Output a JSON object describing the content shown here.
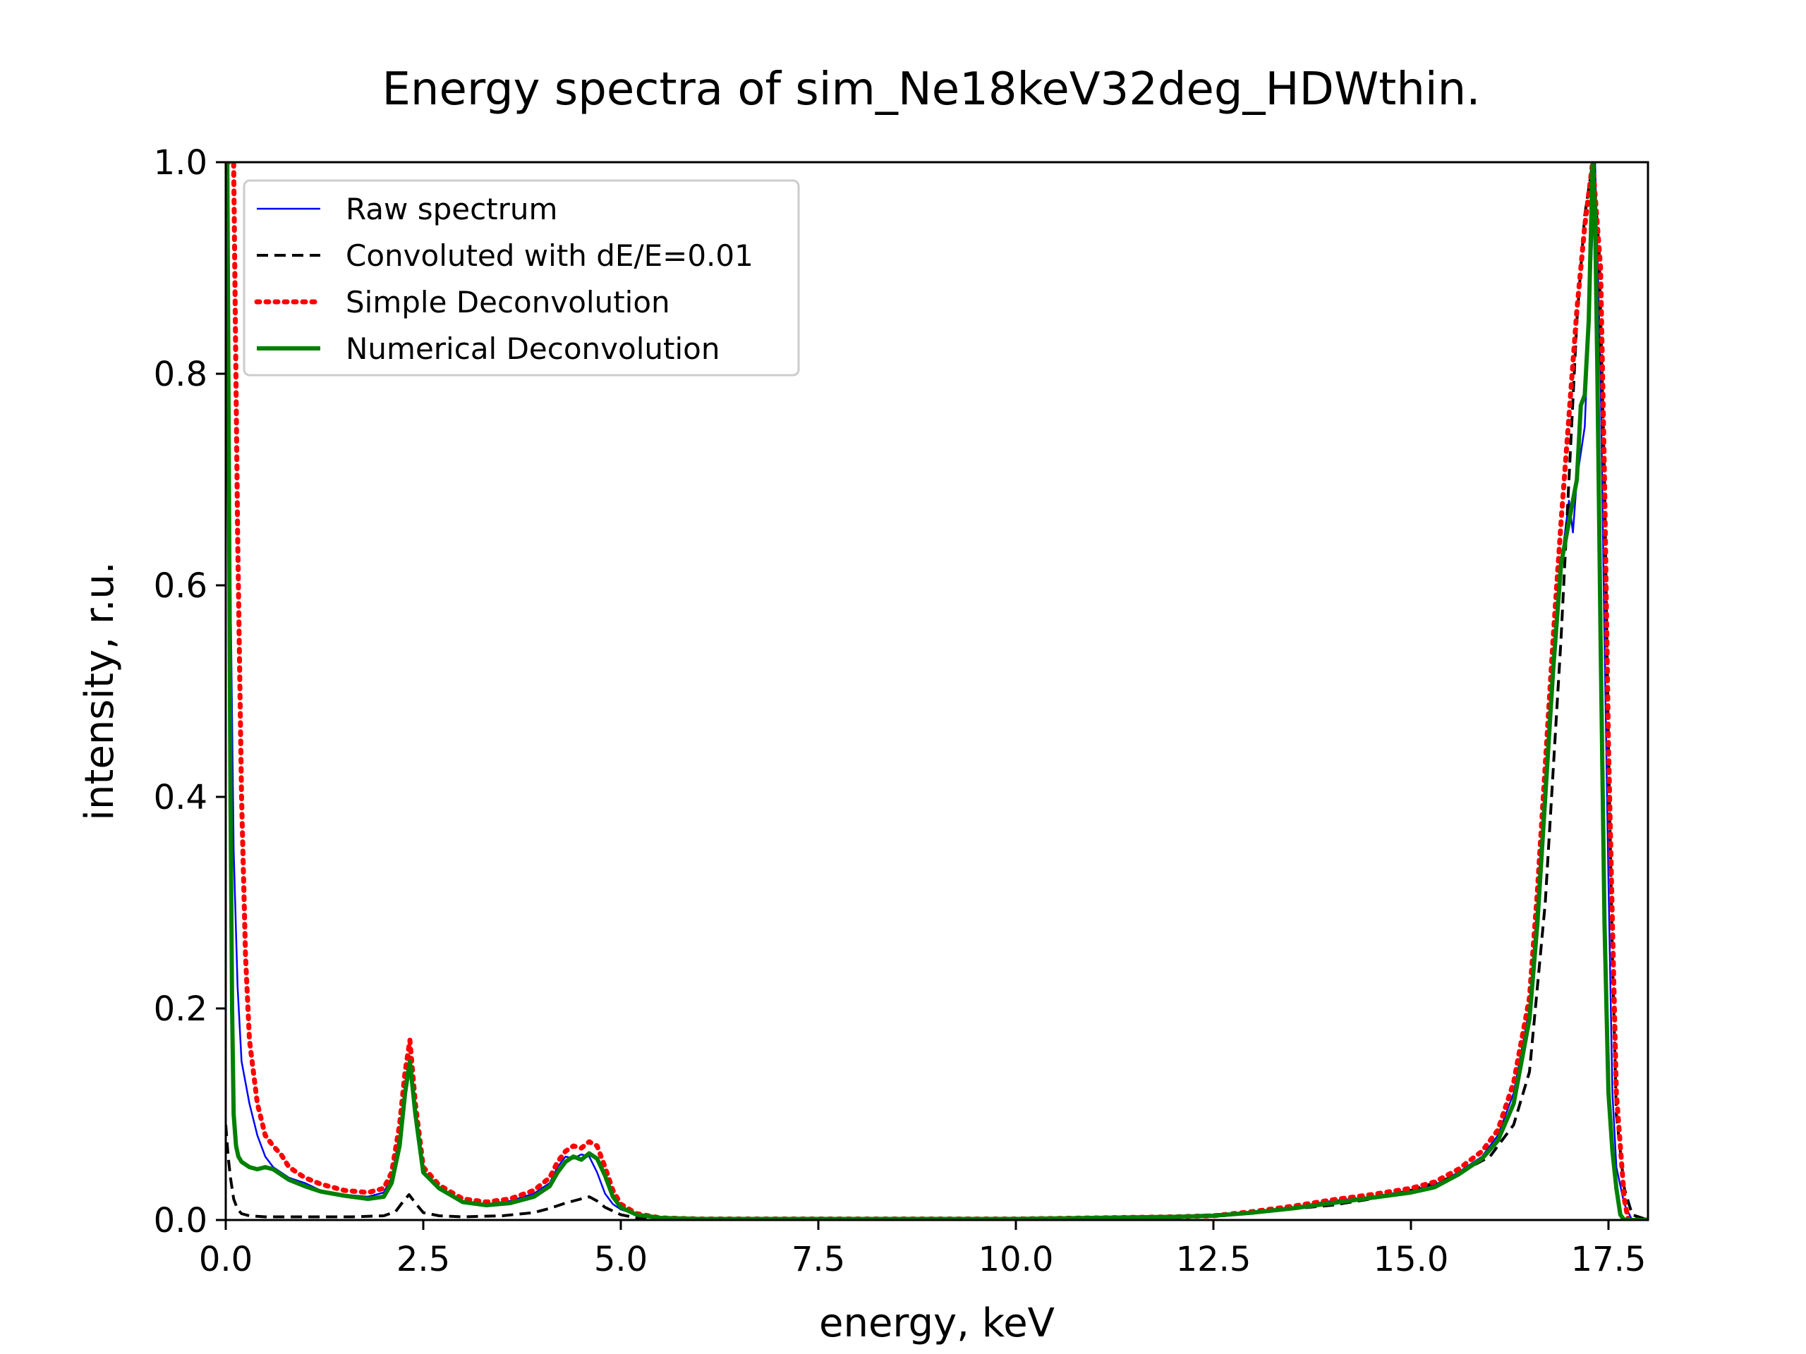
{
  "chart_data": {
    "type": "line",
    "title": "Energy spectra of sim_Ne18keV32deg_HDWthin.",
    "xlabel": "energy, keV",
    "ylabel": "intensity, r.u.",
    "xlim": [
      0,
      18
    ],
    "ylim": [
      0,
      1.0
    ],
    "xticks": [
      "0.0",
      "2.5",
      "5.0",
      "7.5",
      "10.0",
      "12.5",
      "15.0",
      "17.5"
    ],
    "yticks": [
      "0.0",
      "0.2",
      "0.4",
      "0.6",
      "0.8",
      "1.0"
    ],
    "legend_position": "top-left",
    "grid": false,
    "series": [
      {
        "name": "Raw spectrum",
        "color": "#0000ff",
        "style": "solid-thin",
        "x": [
          0.0,
          0.03,
          0.06,
          0.1,
          0.15,
          0.2,
          0.3,
          0.4,
          0.5,
          0.6,
          0.7,
          0.8,
          1.0,
          1.2,
          1.5,
          1.8,
          2.0,
          2.1,
          2.2,
          2.27,
          2.33,
          2.4,
          2.5,
          2.7,
          3.0,
          3.3,
          3.6,
          3.9,
          4.1,
          4.2,
          4.3,
          4.4,
          4.5,
          4.6,
          4.7,
          4.8,
          4.9,
          5.0,
          5.2,
          5.5,
          6.0,
          7.0,
          8.0,
          9.0,
          10.0,
          11.0,
          12.0,
          12.5,
          13.0,
          13.5,
          14.0,
          14.5,
          15.0,
          15.3,
          15.6,
          15.9,
          16.1,
          16.3,
          16.5,
          16.6,
          16.7,
          16.8,
          16.9,
          17.0,
          17.05,
          17.1,
          17.2,
          17.28,
          17.33,
          17.4,
          17.45,
          17.5,
          17.55,
          17.6,
          17.7,
          17.8,
          18.0
        ],
        "y": [
          1.0,
          1.0,
          0.6,
          0.35,
          0.22,
          0.15,
          0.11,
          0.08,
          0.06,
          0.05,
          0.045,
          0.04,
          0.035,
          0.028,
          0.024,
          0.022,
          0.026,
          0.04,
          0.08,
          0.13,
          0.155,
          0.1,
          0.045,
          0.03,
          0.018,
          0.015,
          0.018,
          0.025,
          0.035,
          0.05,
          0.06,
          0.058,
          0.062,
          0.06,
          0.045,
          0.025,
          0.015,
          0.01,
          0.005,
          0.002,
          0.001,
          0.001,
          0.001,
          0.001,
          0.001,
          0.002,
          0.003,
          0.004,
          0.008,
          0.012,
          0.018,
          0.022,
          0.028,
          0.033,
          0.045,
          0.06,
          0.08,
          0.12,
          0.2,
          0.3,
          0.42,
          0.52,
          0.62,
          0.68,
          0.65,
          0.7,
          0.75,
          0.9,
          1.0,
          0.8,
          0.55,
          0.32,
          0.12,
          0.05,
          0.015,
          0.0,
          0.0
        ]
      },
      {
        "name": "Convoluted with dE/E=0.01",
        "color": "#000000",
        "style": "dashed",
        "x": [
          0.0,
          0.03,
          0.06,
          0.1,
          0.15,
          0.2,
          0.3,
          0.5,
          0.8,
          1.2,
          1.6,
          2.0,
          2.15,
          2.25,
          2.32,
          2.4,
          2.5,
          2.7,
          3.0,
          3.5,
          3.9,
          4.1,
          4.3,
          4.5,
          4.6,
          4.7,
          4.8,
          5.0,
          5.2,
          5.5,
          6.0,
          8.0,
          10.0,
          12.0,
          13.0,
          14.0,
          14.5,
          15.0,
          15.5,
          16.0,
          16.3,
          16.5,
          16.7,
          16.9,
          17.0,
          17.1,
          17.2,
          17.3,
          17.38,
          17.45,
          17.5,
          17.55,
          17.6,
          17.7,
          17.8,
          18.0
        ],
        "y": [
          0.09,
          0.06,
          0.04,
          0.02,
          0.01,
          0.006,
          0.004,
          0.003,
          0.003,
          0.003,
          0.003,
          0.004,
          0.008,
          0.018,
          0.024,
          0.016,
          0.007,
          0.004,
          0.003,
          0.004,
          0.007,
          0.011,
          0.016,
          0.02,
          0.022,
          0.018,
          0.012,
          0.005,
          0.002,
          0.001,
          0.001,
          0.001,
          0.001,
          0.003,
          0.007,
          0.014,
          0.02,
          0.028,
          0.04,
          0.06,
          0.09,
          0.14,
          0.3,
          0.55,
          0.7,
          0.85,
          0.95,
          1.0,
          0.92,
          0.7,
          0.45,
          0.25,
          0.1,
          0.03,
          0.005,
          0.0
        ]
      },
      {
        "name": "Simple Deconvolution",
        "color": "#ff0000",
        "style": "dotted",
        "x": [
          0.0,
          0.03,
          0.06,
          0.1,
          0.15,
          0.2,
          0.25,
          0.3,
          0.4,
          0.5,
          0.6,
          0.7,
          0.8,
          1.0,
          1.2,
          1.5,
          1.8,
          2.0,
          2.1,
          2.2,
          2.27,
          2.33,
          2.4,
          2.5,
          2.7,
          3.0,
          3.3,
          3.6,
          3.9,
          4.1,
          4.2,
          4.3,
          4.4,
          4.5,
          4.6,
          4.7,
          4.8,
          4.9,
          5.0,
          5.2,
          5.5,
          6.0,
          7.0,
          8.0,
          9.0,
          10.0,
          11.0,
          12.0,
          12.5,
          13.0,
          13.5,
          14.0,
          14.5,
          15.0,
          15.3,
          15.6,
          15.9,
          16.1,
          16.3,
          16.5,
          16.6,
          16.7,
          16.8,
          16.9,
          17.0,
          17.1,
          17.2,
          17.3,
          17.4,
          17.45,
          17.5,
          17.55,
          17.6,
          17.65,
          17.7,
          17.75,
          18.0
        ],
        "y": [
          1.0,
          1.0,
          1.0,
          1.0,
          0.65,
          0.4,
          0.25,
          0.17,
          0.11,
          0.08,
          0.07,
          0.062,
          0.05,
          0.04,
          0.034,
          0.028,
          0.026,
          0.03,
          0.045,
          0.09,
          0.14,
          0.17,
          0.11,
          0.05,
          0.033,
          0.02,
          0.017,
          0.02,
          0.028,
          0.04,
          0.055,
          0.065,
          0.07,
          0.068,
          0.074,
          0.07,
          0.05,
          0.028,
          0.015,
          0.006,
          0.002,
          0.001,
          0.001,
          0.001,
          0.001,
          0.001,
          0.002,
          0.003,
          0.004,
          0.008,
          0.013,
          0.019,
          0.024,
          0.03,
          0.036,
          0.048,
          0.065,
          0.085,
          0.13,
          0.21,
          0.31,
          0.43,
          0.55,
          0.66,
          0.76,
          0.86,
          0.94,
          1.0,
          0.9,
          0.7,
          0.45,
          0.28,
          0.12,
          0.07,
          0.02,
          0.0,
          0.0
        ]
      },
      {
        "name": "Numerical Deconvolution",
        "color": "#008000",
        "style": "solid-thick",
        "x": [
          0.0,
          0.02,
          0.04,
          0.06,
          0.08,
          0.1,
          0.13,
          0.16,
          0.2,
          0.3,
          0.4,
          0.5,
          0.6,
          0.7,
          0.8,
          1.0,
          1.2,
          1.5,
          1.8,
          2.0,
          2.1,
          2.2,
          2.27,
          2.33,
          2.4,
          2.5,
          2.7,
          3.0,
          3.3,
          3.6,
          3.9,
          4.1,
          4.2,
          4.3,
          4.4,
          4.5,
          4.6,
          4.7,
          4.8,
          4.9,
          5.0,
          5.2,
          5.5,
          6.0,
          7.0,
          8.0,
          9.0,
          10.0,
          11.0,
          12.0,
          12.5,
          13.0,
          13.5,
          14.0,
          14.5,
          15.0,
          15.3,
          15.6,
          15.9,
          16.1,
          16.3,
          16.5,
          16.6,
          16.7,
          16.8,
          16.9,
          17.0,
          17.1,
          17.15,
          17.2,
          17.25,
          17.3,
          17.33,
          17.36,
          17.4,
          17.45,
          17.5,
          17.55,
          17.6,
          17.65,
          17.7,
          18.0
        ],
        "y": [
          1.0,
          1.0,
          0.7,
          0.4,
          0.2,
          0.1,
          0.07,
          0.06,
          0.055,
          0.05,
          0.048,
          0.05,
          0.048,
          0.043,
          0.038,
          0.032,
          0.027,
          0.023,
          0.02,
          0.022,
          0.035,
          0.07,
          0.12,
          0.15,
          0.1,
          0.045,
          0.03,
          0.017,
          0.014,
          0.016,
          0.022,
          0.032,
          0.045,
          0.055,
          0.06,
          0.057,
          0.063,
          0.058,
          0.042,
          0.022,
          0.012,
          0.005,
          0.002,
          0.001,
          0.001,
          0.001,
          0.001,
          0.001,
          0.002,
          0.003,
          0.004,
          0.007,
          0.011,
          0.016,
          0.021,
          0.026,
          0.031,
          0.043,
          0.058,
          0.075,
          0.11,
          0.19,
          0.28,
          0.4,
          0.52,
          0.62,
          0.66,
          0.7,
          0.77,
          0.78,
          0.85,
          1.0,
          0.95,
          0.8,
          0.55,
          0.28,
          0.12,
          0.065,
          0.03,
          0.005,
          0.0,
          0.0
        ]
      }
    ]
  }
}
